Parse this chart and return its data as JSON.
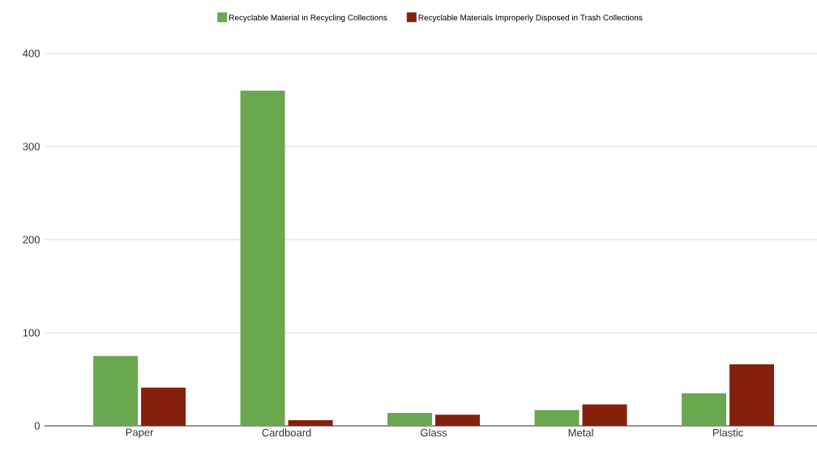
{
  "chart_data": {
    "type": "bar",
    "categories": [
      "Paper",
      "Cardboard",
      "Glass",
      "Metal",
      "Plastic"
    ],
    "series": [
      {
        "name": "Recyclable Material in Recycling Collections",
        "color": "#6aa84f",
        "values": [
          75,
          360,
          14,
          17,
          35
        ]
      },
      {
        "name": "Recyclable Materials Improperly Disposed in Trash Collections",
        "color": "#85200c",
        "values": [
          41,
          6,
          12,
          23,
          66
        ]
      }
    ],
    "ylim": [
      0,
      400
    ],
    "yticks": [
      0,
      100,
      200,
      300,
      400
    ],
    "grid": "y",
    "legend": "top"
  }
}
